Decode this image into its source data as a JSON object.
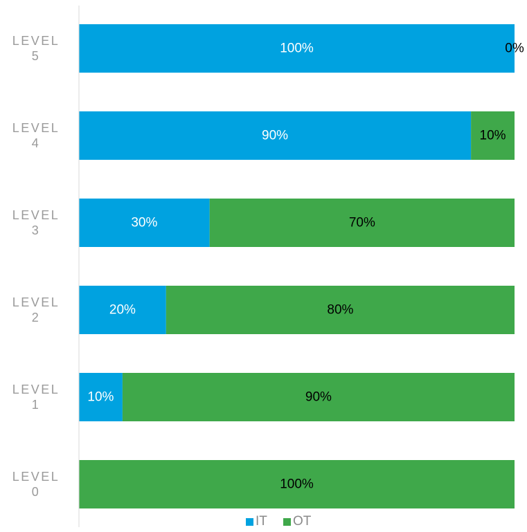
{
  "chart_data": {
    "type": "bar",
    "orientation": "horizontal",
    "stacked": "percent",
    "categories": [
      [
        "LEVEL",
        "5"
      ],
      [
        "LEVEL",
        "4"
      ],
      [
        "LEVEL",
        "3"
      ],
      [
        "LEVEL",
        "2"
      ],
      [
        "LEVEL",
        "1"
      ],
      [
        "LEVEL",
        "0"
      ]
    ],
    "series": [
      {
        "name": "IT",
        "color": "#00A2E0",
        "values": [
          100,
          90,
          30,
          20,
          10,
          0
        ],
        "labels": [
          "100%",
          "90%",
          "30%",
          "20%",
          "10%",
          ""
        ],
        "label_color": "#ffffff"
      },
      {
        "name": "OT",
        "color": "#3FA84A",
        "values": [
          0,
          10,
          70,
          80,
          90,
          100
        ],
        "labels": [
          "0%",
          "10%",
          "70%",
          "80%",
          "90%",
          "100%"
        ],
        "label_color": "#000000"
      }
    ],
    "xlim": [
      0,
      100
    ],
    "grid": false,
    "legend": "bottom-center",
    "axis_color": "#d9d9d9"
  }
}
